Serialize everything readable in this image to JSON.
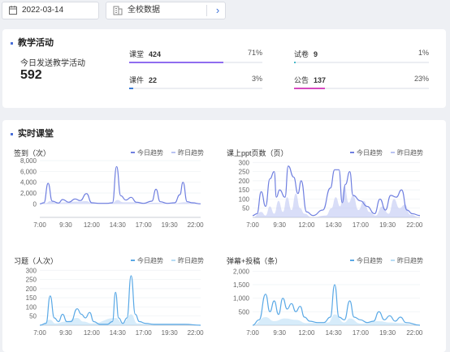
{
  "toolbar": {
    "date": "2022-03-14",
    "school": "全校数据"
  },
  "activity": {
    "title": "教学活动",
    "today_label": "今日发送教学活动",
    "today_total": "592",
    "stats": [
      {
        "name": "课堂",
        "count": "424",
        "percent": "71%",
        "fraction": 0.71,
        "color": "#8f6cf0"
      },
      {
        "name": "试卷",
        "count": "9",
        "percent": "1%",
        "fraction": 0.01,
        "color": "#46b8c9"
      },
      {
        "name": "课件",
        "count": "22",
        "percent": "3%",
        "fraction": 0.03,
        "color": "#3a7bd5"
      },
      {
        "name": "公告",
        "count": "137",
        "percent": "23%",
        "fraction": 0.23,
        "color": "#d64ac0"
      }
    ]
  },
  "realtime": {
    "title": "实时课堂",
    "legend_today": "今日趋势",
    "legend_yesterday": "昨日趋势"
  },
  "chart_data": [
    {
      "type": "area",
      "title": "签到（次）",
      "x_ticks": [
        "7:00",
        "9:30",
        "12:00",
        "14:30",
        "17:00",
        "19:30",
        "22:00"
      ],
      "y_ticks": [
        "8,000",
        "6,000",
        "4,000",
        "2,000",
        "0"
      ],
      "ylim": [
        -2500,
        8000
      ],
      "today_color": "#6f7fe0",
      "yesterday_color": "#b9c2f2",
      "today": [
        [
          7,
          0
        ],
        [
          7.4,
          200
        ],
        [
          7.8,
          3800
        ],
        [
          8.2,
          500
        ],
        [
          8.8,
          150
        ],
        [
          9.2,
          800
        ],
        [
          9.8,
          300
        ],
        [
          10.4,
          900
        ],
        [
          10.9,
          600
        ],
        [
          11.5,
          1900
        ],
        [
          12,
          200
        ],
        [
          12.7,
          100
        ],
        [
          13.5,
          100
        ],
        [
          14,
          200
        ],
        [
          14.4,
          6900
        ],
        [
          14.8,
          1500
        ],
        [
          15.3,
          700
        ],
        [
          15.8,
          1200
        ],
        [
          16.3,
          300
        ],
        [
          17,
          100
        ],
        [
          17.8,
          500
        ],
        [
          18.2,
          2700
        ],
        [
          18.6,
          400
        ],
        [
          19.3,
          100
        ],
        [
          20,
          200
        ],
        [
          20.5,
          1700
        ],
        [
          20.8,
          4000
        ],
        [
          21.2,
          400
        ],
        [
          21.7,
          200
        ],
        [
          22.5,
          0
        ]
      ],
      "yesterday": [
        [
          7,
          0
        ],
        [
          7.6,
          150
        ],
        [
          8,
          500
        ],
        [
          8.6,
          200
        ],
        [
          9.5,
          300
        ],
        [
          10.5,
          400
        ],
        [
          11.5,
          500
        ],
        [
          12,
          150
        ],
        [
          14,
          200
        ],
        [
          14.5,
          700
        ],
        [
          15,
          300
        ],
        [
          16,
          300
        ],
        [
          17,
          100
        ],
        [
          18,
          200
        ],
        [
          19,
          150
        ],
        [
          20,
          100
        ],
        [
          21,
          300
        ],
        [
          22.5,
          0
        ]
      ]
    },
    {
      "type": "area",
      "title": "课上ppt页数（页）",
      "x_ticks": [
        "7:00",
        "9:30",
        "12:00",
        "14:30",
        "17:00",
        "19:30",
        "22:00"
      ],
      "y_ticks": [
        "300",
        "250",
        "200",
        "150",
        "100",
        "50"
      ],
      "ylim": [
        0,
        310
      ],
      "today_color": "#6f7fe0",
      "yesterday_color": "#b9c2f2",
      "today": [
        [
          7,
          10
        ],
        [
          7.4,
          20
        ],
        [
          7.8,
          140
        ],
        [
          8.2,
          60
        ],
        [
          8.6,
          210
        ],
        [
          9,
          250
        ],
        [
          9.2,
          110
        ],
        [
          9.5,
          150
        ],
        [
          10,
          110
        ],
        [
          10.3,
          280
        ],
        [
          10.8,
          220
        ],
        [
          11.2,
          130
        ],
        [
          11.5,
          200
        ],
        [
          12,
          30
        ],
        [
          12.6,
          10
        ],
        [
          13.5,
          40
        ],
        [
          14.2,
          160
        ],
        [
          14.6,
          260
        ],
        [
          15,
          260
        ],
        [
          15.3,
          80
        ],
        [
          15.6,
          180
        ],
        [
          16,
          250
        ],
        [
          16.3,
          120
        ],
        [
          17,
          90
        ],
        [
          17.6,
          60
        ],
        [
          18.3,
          20
        ],
        [
          18.8,
          100
        ],
        [
          19.3,
          40
        ],
        [
          19.8,
          120
        ],
        [
          20.3,
          110
        ],
        [
          20.8,
          150
        ],
        [
          21.3,
          40
        ],
        [
          21.8,
          20
        ],
        [
          22.5,
          10
        ]
      ],
      "yesterday": [
        [
          7,
          0
        ],
        [
          7.8,
          30
        ],
        [
          8.2,
          10
        ],
        [
          8.6,
          60
        ],
        [
          9,
          20
        ],
        [
          9.4,
          90
        ],
        [
          9.8,
          30
        ],
        [
          10.2,
          110
        ],
        [
          10.6,
          40
        ],
        [
          11,
          130
        ],
        [
          11.4,
          50
        ],
        [
          11.8,
          20
        ],
        [
          12.5,
          0
        ],
        [
          13.8,
          10
        ],
        [
          14.3,
          50
        ],
        [
          14.7,
          110
        ],
        [
          15.1,
          60
        ],
        [
          15.5,
          170
        ],
        [
          15.9,
          80
        ],
        [
          16.3,
          120
        ],
        [
          16.8,
          40
        ],
        [
          17.3,
          90
        ],
        [
          17.8,
          30
        ],
        [
          18.4,
          10
        ],
        [
          19,
          60
        ],
        [
          19.6,
          20
        ],
        [
          20.1,
          100
        ],
        [
          20.6,
          50
        ],
        [
          21.1,
          70
        ],
        [
          21.6,
          15
        ],
        [
          22.5,
          0
        ]
      ]
    },
    {
      "type": "area",
      "title": "习题（人次）",
      "x_ticks": [
        "7:00",
        "9:30",
        "12:00",
        "14:30",
        "17:00",
        "19:30",
        "22:00"
      ],
      "y_ticks": [
        "300",
        "250",
        "200",
        "150",
        "100",
        "50"
      ],
      "ylim": [
        0,
        310
      ],
      "today_color": "#5aa9e6",
      "yesterday_color": "#b7dcf5",
      "today": [
        [
          7,
          0
        ],
        [
          7.6,
          10
        ],
        [
          8,
          160
        ],
        [
          8.4,
          40
        ],
        [
          8.8,
          20
        ],
        [
          9.2,
          60
        ],
        [
          9.6,
          20
        ],
        [
          10,
          20
        ],
        [
          10.6,
          90
        ],
        [
          11,
          60
        ],
        [
          11.4,
          40
        ],
        [
          11.8,
          70
        ],
        [
          12.2,
          20
        ],
        [
          12.8,
          5
        ],
        [
          13.5,
          5
        ],
        [
          14,
          20
        ],
        [
          14.3,
          180
        ],
        [
          14.6,
          40
        ],
        [
          15,
          10
        ],
        [
          15.4,
          40
        ],
        [
          15.8,
          270
        ],
        [
          16.2,
          60
        ],
        [
          16.6,
          20
        ],
        [
          17.2,
          10
        ],
        [
          18,
          5
        ],
        [
          19.5,
          5
        ],
        [
          21,
          5
        ],
        [
          22.5,
          0
        ]
      ],
      "yesterday": [
        [
          7,
          0
        ],
        [
          8,
          30
        ],
        [
          8.5,
          10
        ],
        [
          9.5,
          20
        ],
        [
          10.6,
          40
        ],
        [
          11.2,
          20
        ],
        [
          12,
          10
        ],
        [
          14.3,
          40
        ],
        [
          15,
          10
        ],
        [
          15.8,
          60
        ],
        [
          16.4,
          10
        ],
        [
          17.5,
          5
        ],
        [
          22.5,
          0
        ]
      ]
    },
    {
      "type": "area",
      "title": "弹幕+投稿（条）",
      "x_ticks": [
        "7:00",
        "9:30",
        "12:00",
        "14:30",
        "17:00",
        "19:30",
        "22:00"
      ],
      "y_ticks": [
        "2,000",
        "1,500",
        "1,000",
        "500"
      ],
      "ylim": [
        0,
        2100
      ],
      "today_color": "#5aa9e6",
      "yesterday_color": "#b7dcf5",
      "today": [
        [
          7,
          0
        ],
        [
          7.6,
          200
        ],
        [
          8.2,
          1150
        ],
        [
          8.6,
          500
        ],
        [
          9,
          900
        ],
        [
          9.4,
          400
        ],
        [
          9.8,
          1000
        ],
        [
          10.2,
          600
        ],
        [
          10.6,
          800
        ],
        [
          11,
          500
        ],
        [
          11.4,
          700
        ],
        [
          11.8,
          300
        ],
        [
          12.3,
          150
        ],
        [
          13,
          100
        ],
        [
          13.6,
          100
        ],
        [
          14.2,
          300
        ],
        [
          14.6,
          1500
        ],
        [
          15,
          300
        ],
        [
          15.5,
          200
        ],
        [
          16,
          900
        ],
        [
          16.4,
          300
        ],
        [
          17,
          200
        ],
        [
          17.6,
          100
        ],
        [
          18.2,
          150
        ],
        [
          18.7,
          500
        ],
        [
          19.2,
          200
        ],
        [
          19.7,
          350
        ],
        [
          20.2,
          150
        ],
        [
          20.7,
          300
        ],
        [
          21.2,
          100
        ],
        [
          22.5,
          0
        ]
      ],
      "yesterday": [
        [
          7,
          0
        ],
        [
          8.2,
          300
        ],
        [
          9,
          150
        ],
        [
          10,
          250
        ],
        [
          11,
          200
        ],
        [
          12,
          80
        ],
        [
          14,
          100
        ],
        [
          14.6,
          400
        ],
        [
          15.5,
          100
        ],
        [
          16,
          250
        ],
        [
          17,
          60
        ],
        [
          18.7,
          150
        ],
        [
          19.7,
          100
        ],
        [
          20.7,
          80
        ],
        [
          22.5,
          0
        ]
      ]
    }
  ]
}
